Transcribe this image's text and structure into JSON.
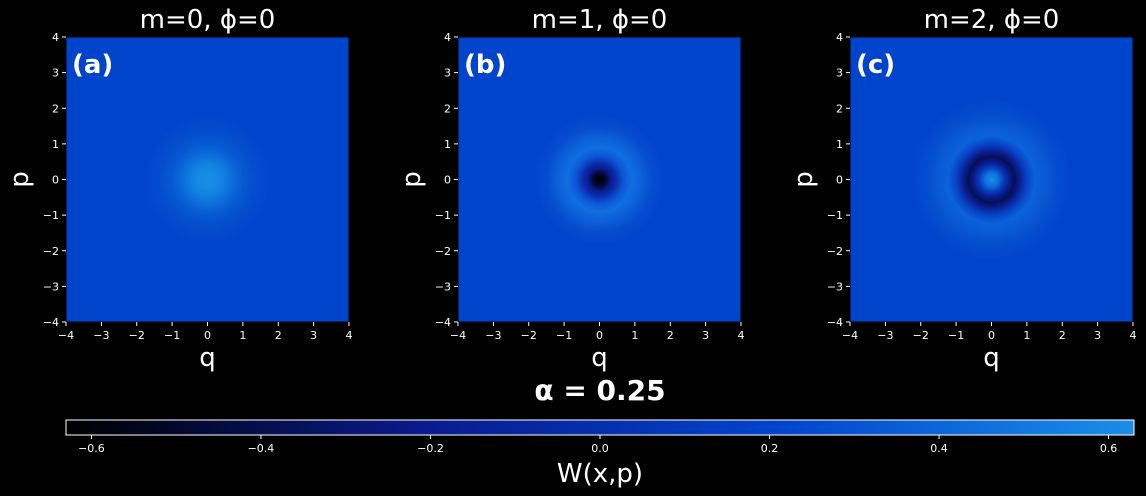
{
  "chart_data": {
    "type": "heatmap",
    "suptitle": "α = 0.25",
    "panels": [
      {
        "label": "(a)",
        "title": "m=0, ϕ=0",
        "m": 0,
        "phi": 0,
        "xlabel": "q",
        "ylabel": "p",
        "xlim": [
          -4,
          4
        ],
        "ylim": [
          -4,
          4
        ],
        "xticks": [
          -4,
          -3,
          -2,
          -1,
          0,
          1,
          2,
          3,
          4
        ],
        "yticks": [
          -4,
          -3,
          -2,
          -1,
          0,
          1,
          2,
          3,
          4
        ],
        "tick_labels": [
          "−4",
          "−3",
          "−2",
          "−1",
          "0",
          "1",
          "2",
          "3",
          "4"
        ]
      },
      {
        "label": "(b)",
        "title": "m=1, ϕ=0",
        "m": 1,
        "phi": 0,
        "xlabel": "q",
        "ylabel": "p",
        "xlim": [
          -4,
          4
        ],
        "ylim": [
          -4,
          4
        ],
        "xticks": [
          -4,
          -3,
          -2,
          -1,
          0,
          1,
          2,
          3,
          4
        ],
        "yticks": [
          -4,
          -3,
          -2,
          -1,
          0,
          1,
          2,
          3,
          4
        ],
        "tick_labels": [
          "−4",
          "−3",
          "−2",
          "−1",
          "0",
          "1",
          "2",
          "3",
          "4"
        ]
      },
      {
        "label": "(c)",
        "title": "m=2, ϕ=0",
        "m": 2,
        "phi": 0,
        "xlabel": "q",
        "ylabel": "p",
        "xlim": [
          -4,
          4
        ],
        "ylim": [
          -4,
          4
        ],
        "xticks": [
          -4,
          -3,
          -2,
          -1,
          0,
          1,
          2,
          3,
          4
        ],
        "yticks": [
          -4,
          -3,
          -2,
          -1,
          0,
          1,
          2,
          3,
          4
        ],
        "tick_labels": [
          "−4",
          "−3",
          "−2",
          "−1",
          "0",
          "1",
          "2",
          "3",
          "4"
        ]
      }
    ],
    "alpha": 0.25,
    "colorbar": {
      "label": "W(x,p)",
      "range": [
        -0.63,
        0.63
      ],
      "ticks": [
        -0.6,
        -0.4,
        -0.2,
        0.0,
        0.2,
        0.4,
        0.6
      ],
      "tick_labels": [
        "−0.6",
        "−0.4",
        "−0.2",
        "0.0",
        "0.2",
        "0.4",
        "0.6"
      ],
      "colors": [
        "#000000",
        "#0a1a8c",
        "#0044cc",
        "#1a8ee8"
      ],
      "orientation": "horizontal",
      "placement": "bottom"
    },
    "grid": false,
    "background": "#000000"
  }
}
